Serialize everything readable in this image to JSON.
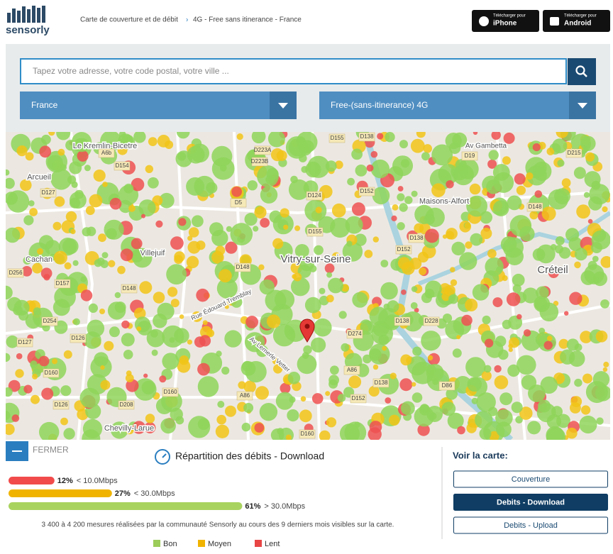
{
  "header": {
    "logo": "sensorly",
    "breadcrumb": [
      "Carte de couverture et de débit",
      "4G - Free sans itinerance - France"
    ],
    "apps": [
      {
        "small": "Télécharger pour",
        "name": "iPhone"
      },
      {
        "small": "Télécharger pour",
        "name": "Android"
      }
    ]
  },
  "search": {
    "placeholder": "Tapez votre adresse, votre code postal, votre ville ..."
  },
  "selects": [
    "France",
    "Free-(sans-itinerance) 4G"
  ],
  "map": {
    "labels": [
      "Le Kremlin-Bicetre",
      "Arcueil",
      "Cachan",
      "Villejuif",
      "Vitry-sur-Seine",
      "Maisons-Alfort",
      "Créteil",
      "Chevilly-Larue",
      "Av Gambetta",
      "Rue Édouard Tremblay",
      "Av Lemerle Vetter",
      "D155",
      "D138",
      "D223A",
      "D223B",
      "D154",
      "D127",
      "D124",
      "D152",
      "D5",
      "D155",
      "D148",
      "D152",
      "D138",
      "D148",
      "D157",
      "D256",
      "D254",
      "D127",
      "D126",
      "D274",
      "D138",
      "D228",
      "D160",
      "D160",
      "D126",
      "D208",
      "D152",
      "D138",
      "D86",
      "D160",
      "D148",
      "D19",
      "D215",
      "A86",
      "A86",
      "A6b"
    ]
  },
  "panel": {
    "close": "FERMER",
    "title": "Répartition des débits - Download",
    "distribution": {
      "values": [
        12,
        27,
        61
      ],
      "value_labels": [
        "12%",
        "27%",
        "61%"
      ],
      "thresholds": [
        "< 10.0Mbps",
        "< 30.0Mbps",
        "> 30.0Mbps"
      ],
      "colors": [
        "#f24b4b",
        "#f0b400",
        "#a9d35f"
      ]
    },
    "note": "3 400 à 4 200 mesures réalisées par la communauté Sensorly au cours des 9 derniers mois visibles sur la carte.",
    "legend": [
      {
        "name": "Bon",
        "color": "#9ccc5a"
      },
      {
        "name": "Moyen",
        "color": "#f0b400"
      },
      {
        "name": "Lent",
        "color": "#e84545"
      }
    ],
    "view_title": "Voir la carte:",
    "view_buttons": [
      "Couverture",
      "Debits - Download",
      "Debits - Upload"
    ]
  }
}
